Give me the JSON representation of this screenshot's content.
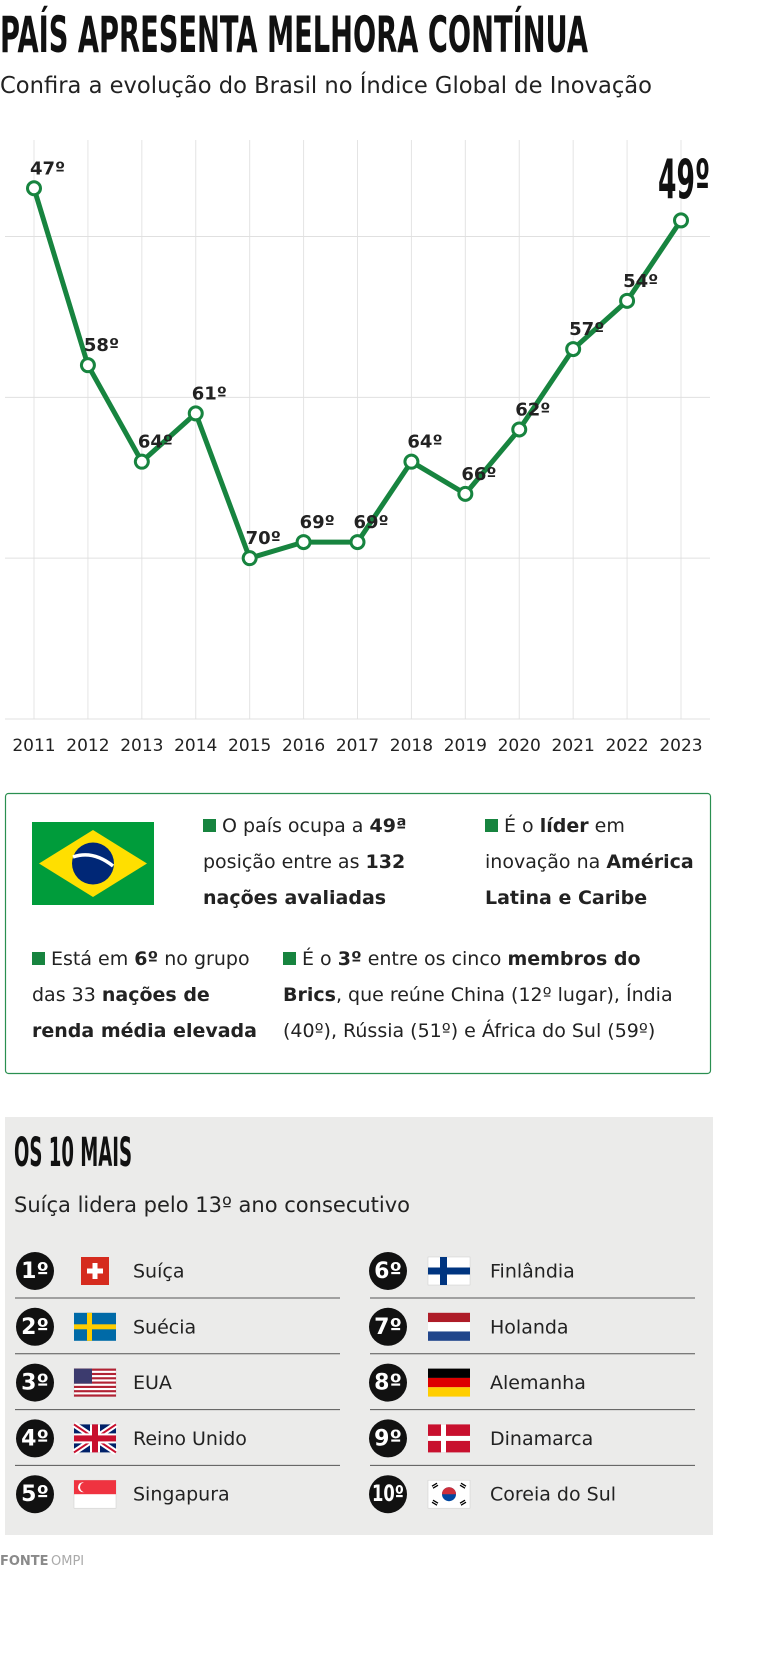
{
  "header": {
    "title": "PAÍS APRESENTA MELHORA CONTÍNUA",
    "subtitle": "Confira a evolução do Brasil no Índice Global de Inovação"
  },
  "chart_data": {
    "type": "line",
    "categories": [
      "2011",
      "2012",
      "2013",
      "2014",
      "2015",
      "2016",
      "2017",
      "2018",
      "2019",
      "2020",
      "2021",
      "2022",
      "2023"
    ],
    "values": [
      47,
      58,
      64,
      61,
      70,
      69,
      69,
      64,
      66,
      62,
      57,
      54,
      49
    ],
    "value_labels": [
      "47º",
      "58º",
      "64º",
      "61º",
      "70º",
      "69º",
      "69º",
      "64º",
      "66º",
      "62º",
      "57º",
      "54º",
      "49º"
    ],
    "color": "#17843f",
    "ylim": [
      80,
      44
    ],
    "yticks": [
      50,
      60,
      70,
      80
    ],
    "grid": true
  },
  "info": {
    "items": [
      {
        "runs": [
          {
            "text": "O país ocupa a ",
            "bold": false
          },
          {
            "text": "49ª",
            "bold": true
          },
          {
            "text": " posição entre as ",
            "bold": false
          },
          {
            "text": "132 nações avaliadas",
            "bold": true
          }
        ]
      },
      {
        "runs": [
          {
            "text": "É o ",
            "bold": false
          },
          {
            "text": "líder",
            "bold": true
          },
          {
            "text": " em inovação na ",
            "bold": false
          },
          {
            "text": "América Latina e Caribe",
            "bold": true
          }
        ]
      },
      {
        "runs": [
          {
            "text": "Está em ",
            "bold": false
          },
          {
            "text": "6º",
            "bold": true
          },
          {
            "text": " no grupo das 33 ",
            "bold": false
          },
          {
            "text": "nações de renda média elevada",
            "bold": true
          }
        ]
      },
      {
        "runs": [
          {
            "text": "É o ",
            "bold": false
          },
          {
            "text": "3º",
            "bold": true
          },
          {
            "text": " entre os cinco ",
            "bold": false
          },
          {
            "text": "membros do Brics",
            "bold": true
          },
          {
            "text": ", que reúne China (12º lugar), Índia (40º), Rússia (51º) e África do Sul (59º)",
            "bold": false
          }
        ]
      }
    ]
  },
  "ranking": {
    "title": "OS 10 MAIS",
    "subtitle": "Suíça lidera pelo 13º ano consecutivo",
    "items": [
      {
        "rank": "1º",
        "country": "Suíça"
      },
      {
        "rank": "2º",
        "country": "Suécia"
      },
      {
        "rank": "3º",
        "country": "EUA"
      },
      {
        "rank": "4º",
        "country": "Reino Unido"
      },
      {
        "rank": "5º",
        "country": "Singapura"
      },
      {
        "rank": "6º",
        "country": "Finlândia"
      },
      {
        "rank": "7º",
        "country": "Holanda"
      },
      {
        "rank": "8º",
        "country": "Alemanha"
      },
      {
        "rank": "9º",
        "country": "Dinamarca"
      },
      {
        "rank": "10º",
        "country": "Coreia do Sul"
      }
    ]
  },
  "footer": {
    "label": "FONTE",
    "source": "OMPI"
  }
}
